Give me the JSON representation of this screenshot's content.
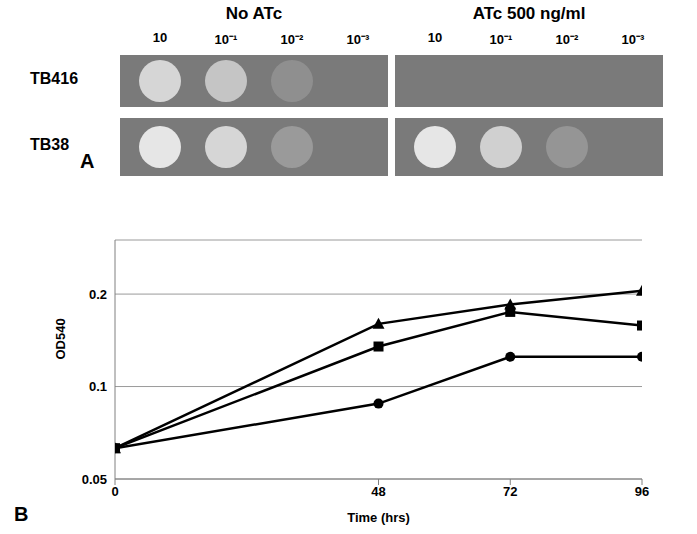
{
  "panel_a": {
    "label": "A",
    "columns": [
      "No ATc",
      "ATc 500 ng/ml"
    ],
    "dilutions": [
      "10",
      "10⁻¹",
      "10⁻²",
      "10⁻³"
    ],
    "rows": [
      "TB416",
      "TB38"
    ]
  },
  "chart_data": {
    "label": "B",
    "type": "line",
    "x_label": "Time (hrs)",
    "y_label": "OD540",
    "x": [
      0,
      48,
      72,
      96
    ],
    "xlim": [
      0,
      96
    ],
    "xticks": [
      0,
      48,
      72,
      96
    ],
    "ylim": [
      0.05,
      0.3
    ],
    "yticks": [
      0.05,
      0.1,
      0.2
    ],
    "log": "y",
    "grid": true,
    "series": [
      {
        "color": "#000000",
        "marker": "triangle",
        "values": [
          0.063,
          0.16,
          0.185,
          0.205
        ]
      },
      {
        "color": "#000000",
        "marker": "square",
        "values": [
          0.063,
          0.135,
          0.175,
          0.158
        ]
      },
      {
        "color": "#000000",
        "marker": "circle",
        "values": [
          0.063,
          0.088,
          0.125,
          0.125
        ]
      }
    ]
  }
}
